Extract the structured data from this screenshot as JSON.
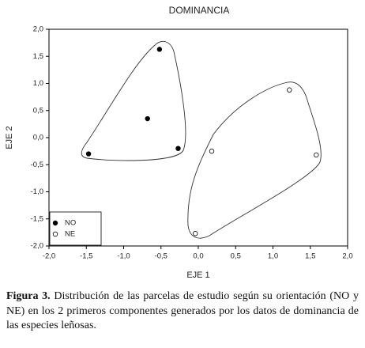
{
  "chart_data": {
    "type": "scatter",
    "title": "DOMINANCIA",
    "xlabel": "EJE 1",
    "ylabel": "EJE 2",
    "xlim": [
      -2.0,
      2.0
    ],
    "ylim": [
      -2.0,
      2.0
    ],
    "xticks": [
      {
        "value": -2.0,
        "label": "-2,0"
      },
      {
        "value": -1.5,
        "label": "-1,5"
      },
      {
        "value": -1.0,
        "label": "-1,0"
      },
      {
        "value": -0.5,
        "label": "-0,5"
      },
      {
        "value": 0.0,
        "label": "0,0"
      },
      {
        "value": 0.5,
        "label": "0,5"
      },
      {
        "value": 1.0,
        "label": "1,0"
      },
      {
        "value": 1.5,
        "label": "1,5"
      },
      {
        "value": 2.0,
        "label": "2,0"
      }
    ],
    "yticks": [
      {
        "value": -2.0,
        "label": "-2,0"
      },
      {
        "value": -1.5,
        "label": "-1,5"
      },
      {
        "value": -1.0,
        "label": "-1,0"
      },
      {
        "value": -0.5,
        "label": "-0,5"
      },
      {
        "value": 0.0,
        "label": "0,0"
      },
      {
        "value": 0.5,
        "label": "0,5"
      },
      {
        "value": 1.0,
        "label": "1,0"
      },
      {
        "value": 1.5,
        "label": "1,5"
      },
      {
        "value": 2.0,
        "label": "2,0"
      }
    ],
    "legend": "lower left",
    "series": [
      {
        "name": "NO",
        "color": "#000000",
        "filled": true,
        "x": [
          -0.52,
          -0.68,
          -1.47,
          -0.27
        ],
        "values": [
          1.63,
          0.35,
          -0.3,
          -0.2
        ]
      },
      {
        "name": "NE",
        "color": "#000000",
        "filled": false,
        "x": [
          0.18,
          1.22,
          1.58,
          -0.04
        ],
        "values": [
          -0.25,
          0.88,
          -0.32,
          -1.77
        ]
      }
    ]
  },
  "caption_label": "Figura 3.",
  "caption": "Distribución de las parcelas de estudio según su orientación (NO y NE) en los 2 primeros componentes generados por los datos de dominancia de las especies leñosas."
}
